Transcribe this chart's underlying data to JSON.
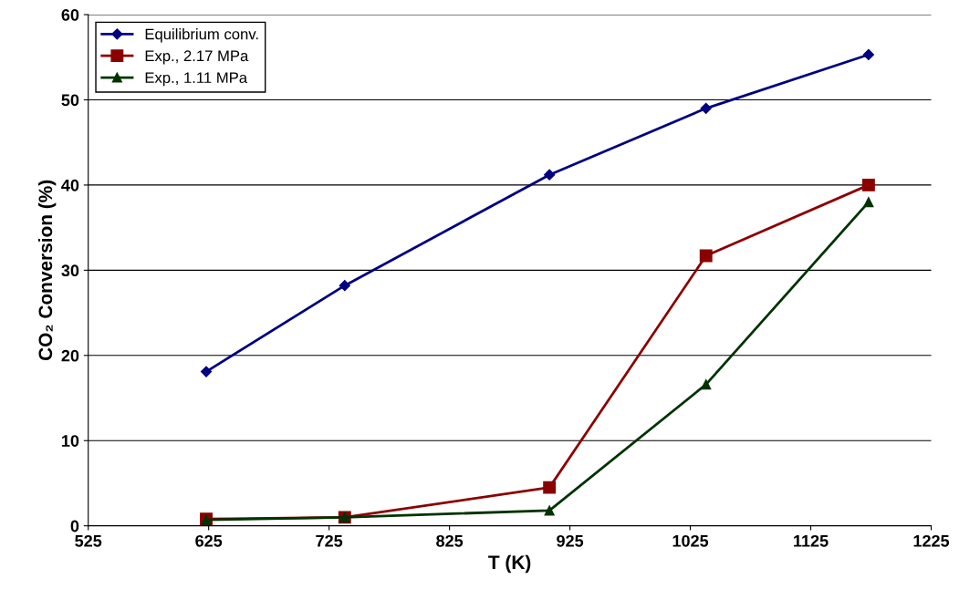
{
  "chart_data": {
    "type": "line",
    "xlabel": "T (K)",
    "ylabel": "CO₂ Conversion (%)",
    "x": [
      623,
      738,
      908,
      1038,
      1173
    ],
    "series": [
      {
        "name": "Equilibrium conv.",
        "color": "#000080",
        "marker": "diamond",
        "values": [
          18.1,
          28.2,
          41.2,
          49.0,
          55.3
        ]
      },
      {
        "name": "Exp., 2.17 MPa",
        "color": "#8b0000",
        "marker": "square",
        "values": [
          0.8,
          1.0,
          4.5,
          31.7,
          40.0
        ]
      },
      {
        "name": "Exp., 1.11 MPa",
        "color": "#003300",
        "marker": "triangle",
        "values": [
          0.7,
          1.0,
          1.8,
          16.6,
          38.0
        ]
      }
    ],
    "xlim": [
      525,
      1225
    ],
    "xticks": [
      525,
      625,
      725,
      825,
      925,
      1025,
      1125,
      1225
    ],
    "ylim": [
      0,
      60
    ],
    "yticks": [
      0,
      10,
      20,
      30,
      40,
      50,
      60
    ],
    "grid": "y",
    "legend": "top left",
    "line_style": "solid"
  }
}
